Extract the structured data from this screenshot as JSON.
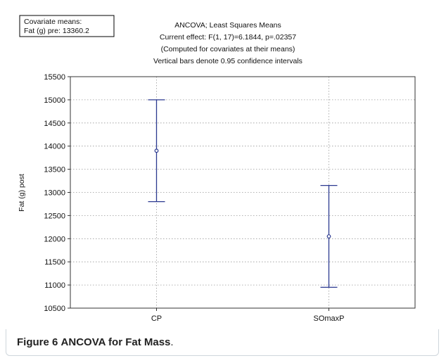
{
  "chart_data": {
    "type": "errorbar",
    "title_lines": [
      "ANCOVA; Least Squares Means",
      "Current effect: F(1, 17)=6.1844, p=.02357",
      "(Computed for covariates at their means)",
      "Vertical bars denote 0.95 confidence intervals"
    ],
    "covariate_box": [
      "Covariate means:",
      "Fat (g) pre: 13360.2"
    ],
    "ylabel": "Fat (g) post",
    "xlabel": "",
    "ylim": [
      10500,
      15500
    ],
    "yticks": [
      10500,
      11000,
      11500,
      12000,
      12500,
      13000,
      13500,
      14000,
      14500,
      15000,
      15500
    ],
    "categories": [
      "CP",
      "SOmaxP"
    ],
    "values": [
      13900,
      12050
    ],
    "lower": [
      12800,
      10950
    ],
    "upper": [
      15000,
      13150
    ],
    "grid": true,
    "colors": {
      "marker": "#2b3990",
      "grid": "#999999",
      "axis": "#333333"
    }
  },
  "caption": {
    "label": "Figure 6",
    "text": "ANCOVA for Fat Mass",
    "suffix": "."
  }
}
